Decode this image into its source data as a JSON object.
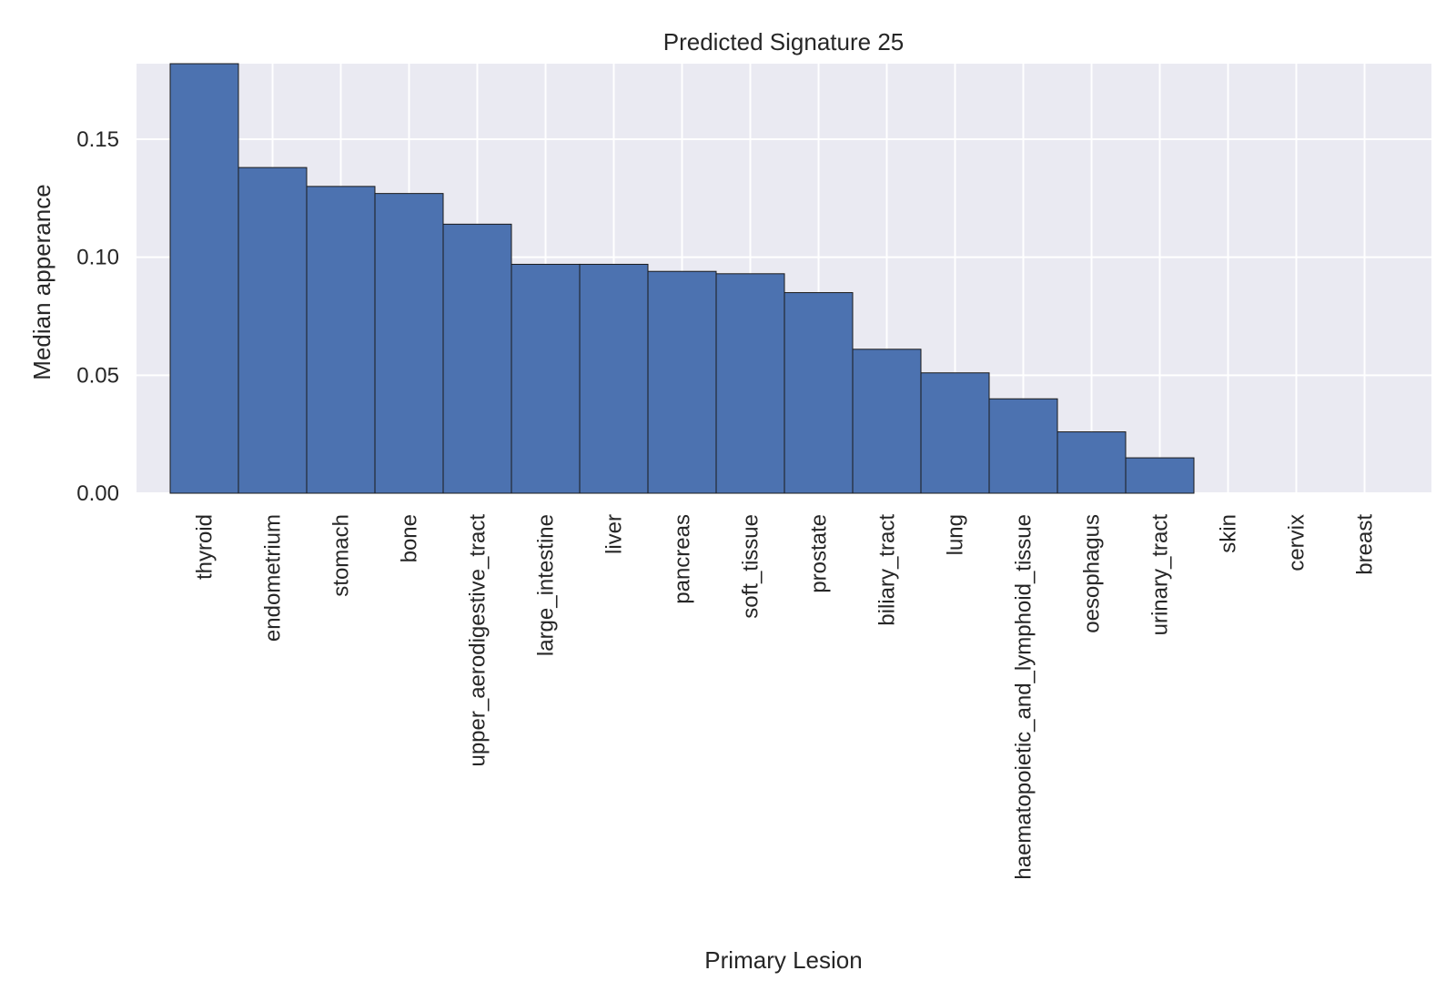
{
  "chart_data": {
    "type": "bar",
    "title": "Predicted Signature 25",
    "xlabel": "Primary Lesion",
    "ylabel": "Median apperance",
    "categories": [
      "thyroid",
      "endometrium",
      "stomach",
      "bone",
      "upper_aerodigestive_tract",
      "large_intestine",
      "liver",
      "pancreas",
      "soft_tissue",
      "prostate",
      "biliary_tract",
      "lung",
      "haematopoietic_and_lymphoid_tissue",
      "oesophagus",
      "urinary_tract",
      "skin",
      "cervix",
      "breast"
    ],
    "values": [
      0.182,
      0.138,
      0.13,
      0.127,
      0.114,
      0.097,
      0.097,
      0.094,
      0.093,
      0.085,
      0.061,
      0.051,
      0.04,
      0.026,
      0.015,
      0.0,
      0.0,
      0.0
    ],
    "ylim": [
      0,
      0.182
    ],
    "yticks": [
      0.0,
      0.05,
      0.1,
      0.15
    ],
    "ytick_labels": [
      "0.00",
      "0.05",
      "0.10",
      "0.15"
    ],
    "grid": true,
    "bar_color": "#4C72B0",
    "background_color": "#EAEAF2"
  }
}
